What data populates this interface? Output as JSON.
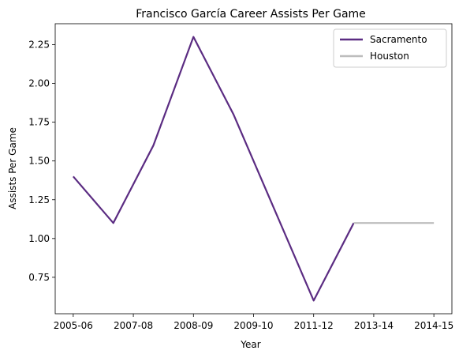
{
  "chart_data": {
    "type": "line",
    "title": "Francisco García  Career Assists Per Game",
    "xlabel": "Year",
    "ylabel": "Assists Per Game",
    "x_ticks": [
      "2005-06",
      "2007-08",
      "2008-09",
      "2009-10",
      "2011-12",
      "2013-14",
      "2014-15"
    ],
    "y_ticks": [
      "0.75",
      "1.00",
      "1.25",
      "1.50",
      "1.75",
      "2.00",
      "2.25"
    ],
    "ylim": [
      0.515,
      2.385
    ],
    "xlim": [
      -0.45,
      9.45
    ],
    "grid": false,
    "legend_position": "top-right",
    "series": [
      {
        "name": "Sacramento",
        "color": "#5b2c82",
        "x": [
          0,
          1,
          2,
          3,
          4,
          5,
          6,
          7
        ],
        "values": [
          1.4,
          1.1,
          1.6,
          2.3,
          1.8,
          1.2,
          0.6,
          1.1
        ]
      },
      {
        "name": "Houston",
        "color": "#bdbdbd",
        "x": [
          7,
          8,
          9
        ],
        "values": [
          1.1,
          1.1,
          1.1
        ]
      }
    ]
  }
}
